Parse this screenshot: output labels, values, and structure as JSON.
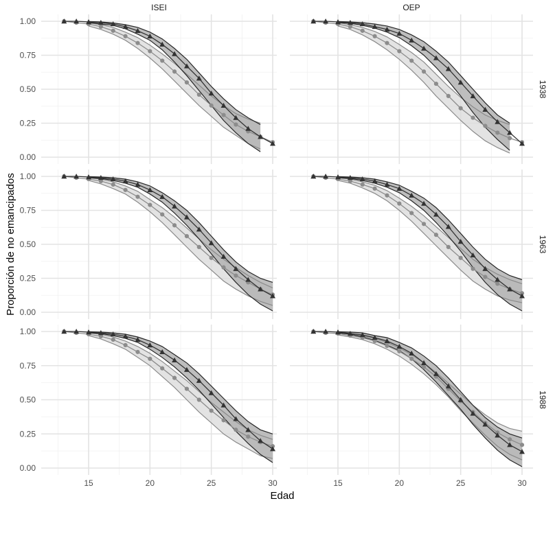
{
  "chart_data": {
    "type": "line",
    "title": "",
    "xlabel": "Edad",
    "ylabel": "Proporción de no emancipados",
    "xlim": [
      12,
      31
    ],
    "ylim": [
      -0.06,
      1.05
    ],
    "x_ticks": [
      15,
      20,
      25,
      30
    ],
    "x_tick_labels": [
      "15",
      "20",
      "25",
      "30"
    ],
    "y_ticks": [
      0,
      0.25,
      0.5,
      0.75,
      1
    ],
    "y_tick_labels": [
      "0.00",
      "0.25",
      "0.50",
      "0.75",
      "1.00"
    ],
    "grid": true,
    "col_strips": [
      "ISEI",
      "OEP"
    ],
    "row_strips": [
      "1938",
      "1963",
      "1988"
    ],
    "x": [
      13,
      14,
      15,
      16,
      17,
      18,
      19,
      20,
      21,
      22,
      23,
      24,
      25,
      26,
      27,
      28,
      29,
      30
    ],
    "panels": [
      {
        "col": "ISEI",
        "row": "1938",
        "band_end": 29,
        "series": [
          {
            "name": "triangle",
            "marker": "triangle",
            "color": "#333333",
            "values": [
              1.0,
              1.0,
              0.995,
              0.99,
              0.98,
              0.96,
              0.93,
              0.89,
              0.83,
              0.76,
              0.67,
              0.58,
              0.47,
              0.38,
              0.29,
              0.21,
              0.15,
              0.1
            ],
            "upper": [
              1.0,
              1.0,
              0.998,
              0.995,
              0.988,
              0.975,
              0.955,
              0.92,
              0.87,
              0.8,
              0.72,
              0.62,
              0.52,
              0.43,
              0.35,
              0.29,
              0.24,
              null
            ],
            "lower": [
              1.0,
              1.0,
              0.99,
              0.98,
              0.97,
              0.945,
              0.905,
              0.86,
              0.79,
              0.7,
              0.6,
              0.49,
              0.38,
              0.27,
              0.18,
              0.1,
              0.04,
              null
            ]
          },
          {
            "name": "circle",
            "marker": "circle",
            "color": "#8c8c8c",
            "values": [
              1.0,
              0.99,
              0.98,
              0.96,
              0.93,
              0.89,
              0.84,
              0.78,
              0.71,
              0.63,
              0.55,
              0.46,
              0.38,
              0.31,
              0.24,
              0.19,
              0.15,
              0.11
            ],
            "upper": [
              1.0,
              0.995,
              0.99,
              0.975,
              0.955,
              0.92,
              0.88,
              0.825,
              0.76,
              0.69,
              0.61,
              0.53,
              0.45,
              0.38,
              0.32,
              0.28,
              0.25,
              null
            ],
            "lower": [
              1.0,
              0.985,
              0.965,
              0.94,
              0.905,
              0.86,
              0.8,
              0.73,
              0.65,
              0.56,
              0.47,
              0.38,
              0.3,
              0.22,
              0.16,
              0.1,
              0.06,
              null
            ]
          }
        ]
      },
      {
        "col": "OEP",
        "row": "1938",
        "band_end": 29,
        "series": [
          {
            "name": "triangle",
            "marker": "triangle",
            "color": "#333333",
            "values": [
              1.0,
              1.0,
              0.995,
              0.99,
              0.98,
              0.96,
              0.94,
              0.91,
              0.86,
              0.8,
              0.73,
              0.65,
              0.55,
              0.45,
              0.35,
              0.26,
              0.18,
              0.1
            ],
            "upper": [
              1.0,
              1.0,
              0.998,
              0.995,
              0.99,
              0.98,
              0.965,
              0.94,
              0.9,
              0.85,
              0.78,
              0.7,
              0.6,
              0.5,
              0.4,
              0.31,
              0.25,
              null
            ],
            "lower": [
              1.0,
              1.0,
              0.99,
              0.985,
              0.97,
              0.95,
              0.92,
              0.88,
              0.82,
              0.75,
              0.66,
              0.56,
              0.45,
              0.33,
              0.22,
              0.13,
              0.05,
              null
            ]
          },
          {
            "name": "circle",
            "marker": "circle",
            "color": "#8c8c8c",
            "values": [
              1.0,
              0.99,
              0.98,
              0.96,
              0.93,
              0.89,
              0.84,
              0.78,
              0.71,
              0.63,
              0.54,
              0.45,
              0.36,
              0.29,
              0.23,
              0.18,
              0.14,
              0.11
            ],
            "upper": [
              1.0,
              0.995,
              0.99,
              0.975,
              0.955,
              0.925,
              0.885,
              0.83,
              0.77,
              0.7,
              0.61,
              0.52,
              0.44,
              0.37,
              0.31,
              0.27,
              0.24,
              null
            ],
            "lower": [
              1.0,
              0.985,
              0.965,
              0.94,
              0.9,
              0.85,
              0.79,
              0.72,
              0.64,
              0.55,
              0.45,
              0.36,
              0.27,
              0.19,
              0.12,
              0.07,
              0.03,
              null
            ]
          }
        ]
      },
      {
        "col": "ISEI",
        "row": "1963",
        "band_end": 30,
        "series": [
          {
            "name": "triangle",
            "marker": "triangle",
            "color": "#333333",
            "values": [
              1.0,
              1.0,
              0.995,
              0.99,
              0.98,
              0.965,
              0.94,
              0.9,
              0.85,
              0.78,
              0.7,
              0.61,
              0.51,
              0.41,
              0.32,
              0.24,
              0.17,
              0.12
            ],
            "upper": [
              1.0,
              1.0,
              0.998,
              0.995,
              0.99,
              0.98,
              0.96,
              0.93,
              0.88,
              0.82,
              0.75,
              0.66,
              0.56,
              0.46,
              0.37,
              0.3,
              0.25,
              0.22
            ],
            "lower": [
              1.0,
              1.0,
              0.99,
              0.985,
              0.97,
              0.95,
              0.92,
              0.87,
              0.81,
              0.73,
              0.64,
              0.54,
              0.43,
              0.32,
              0.22,
              0.13,
              0.06,
              0.01
            ]
          },
          {
            "name": "circle",
            "marker": "circle",
            "color": "#8c8c8c",
            "values": [
              1.0,
              0.99,
              0.98,
              0.965,
              0.94,
              0.9,
              0.85,
              0.79,
              0.72,
              0.64,
              0.56,
              0.48,
              0.4,
              0.33,
              0.27,
              0.22,
              0.17,
              0.13
            ],
            "upper": [
              1.0,
              0.995,
              0.99,
              0.98,
              0.96,
              0.93,
              0.89,
              0.83,
              0.77,
              0.7,
              0.62,
              0.54,
              0.46,
              0.39,
              0.33,
              0.27,
              0.22,
              0.18
            ],
            "lower": [
              1.0,
              0.985,
              0.97,
              0.945,
              0.91,
              0.87,
              0.81,
              0.74,
              0.66,
              0.57,
              0.48,
              0.39,
              0.31,
              0.23,
              0.17,
              0.12,
              0.08,
              0.05
            ]
          }
        ]
      },
      {
        "col": "OEP",
        "row": "1963",
        "band_end": 30,
        "series": [
          {
            "name": "triangle",
            "marker": "triangle",
            "color": "#333333",
            "values": [
              1.0,
              1.0,
              0.995,
              0.99,
              0.98,
              0.965,
              0.94,
              0.91,
              0.86,
              0.8,
              0.72,
              0.63,
              0.52,
              0.42,
              0.32,
              0.24,
              0.17,
              0.12
            ],
            "upper": [
              1.0,
              1.0,
              0.998,
              0.995,
              0.99,
              0.98,
              0.96,
              0.935,
              0.89,
              0.84,
              0.77,
              0.68,
              0.58,
              0.48,
              0.39,
              0.32,
              0.27,
              0.24
            ],
            "lower": [
              1.0,
              1.0,
              0.99,
              0.985,
              0.97,
              0.95,
              0.92,
              0.88,
              0.82,
              0.75,
              0.66,
              0.56,
              0.45,
              0.33,
              0.22,
              0.13,
              0.06,
              0.01
            ]
          },
          {
            "name": "circle",
            "marker": "circle",
            "color": "#8c8c8c",
            "values": [
              1.0,
              0.99,
              0.98,
              0.965,
              0.94,
              0.91,
              0.86,
              0.8,
              0.73,
              0.65,
              0.57,
              0.48,
              0.4,
              0.32,
              0.26,
              0.21,
              0.17,
              0.14
            ],
            "upper": [
              1.0,
              0.995,
              0.99,
              0.98,
              0.96,
              0.935,
              0.895,
              0.84,
              0.78,
              0.71,
              0.63,
              0.55,
              0.47,
              0.39,
              0.33,
              0.28,
              0.24,
              0.21
            ],
            "lower": [
              1.0,
              0.985,
              0.97,
              0.95,
              0.915,
              0.875,
              0.82,
              0.75,
              0.67,
              0.58,
              0.49,
              0.4,
              0.31,
              0.23,
              0.17,
              0.12,
              0.09,
              0.07
            ]
          }
        ]
      },
      {
        "col": "ISEI",
        "row": "1988",
        "band_end": 30,
        "series": [
          {
            "name": "triangle",
            "marker": "triangle",
            "color": "#333333",
            "values": [
              1.0,
              1.0,
              0.995,
              0.99,
              0.98,
              0.965,
              0.94,
              0.9,
              0.85,
              0.79,
              0.72,
              0.64,
              0.55,
              0.46,
              0.36,
              0.28,
              0.2,
              0.14
            ],
            "upper": [
              1.0,
              1.0,
              0.998,
              0.995,
              0.99,
              0.98,
              0.96,
              0.93,
              0.89,
              0.83,
              0.77,
              0.69,
              0.6,
              0.51,
              0.42,
              0.34,
              0.28,
              0.25
            ],
            "lower": [
              1.0,
              1.0,
              0.99,
              0.985,
              0.97,
              0.95,
              0.92,
              0.87,
              0.81,
              0.74,
              0.66,
              0.57,
              0.47,
              0.37,
              0.27,
              0.18,
              0.1,
              0.04
            ]
          },
          {
            "name": "circle",
            "marker": "circle",
            "color": "#8c8c8c",
            "values": [
              1.0,
              0.99,
              0.98,
              0.965,
              0.94,
              0.9,
              0.85,
              0.8,
              0.73,
              0.66,
              0.58,
              0.5,
              0.42,
              0.35,
              0.28,
              0.23,
              0.19,
              0.16
            ],
            "upper": [
              1.0,
              0.995,
              0.99,
              0.98,
              0.96,
              0.93,
              0.89,
              0.84,
              0.78,
              0.71,
              0.64,
              0.56,
              0.48,
              0.41,
              0.34,
              0.28,
              0.24,
              0.21
            ],
            "lower": [
              1.0,
              0.985,
              0.97,
              0.945,
              0.91,
              0.87,
              0.81,
              0.75,
              0.67,
              0.59,
              0.5,
              0.41,
              0.33,
              0.25,
              0.19,
              0.14,
              0.09,
              0.07
            ]
          }
        ]
      },
      {
        "col": "OEP",
        "row": "1988",
        "band_end": 30,
        "series": [
          {
            "name": "triangle",
            "marker": "triangle",
            "color": "#333333",
            "values": [
              1.0,
              1.0,
              0.995,
              0.985,
              0.975,
              0.955,
              0.93,
              0.89,
              0.84,
              0.77,
              0.69,
              0.6,
              0.5,
              0.4,
              0.32,
              0.24,
              0.17,
              0.12
            ],
            "upper": [
              1.0,
              1.0,
              0.998,
              0.995,
              0.99,
              0.97,
              0.955,
              0.92,
              0.88,
              0.82,
              0.75,
              0.66,
              0.56,
              0.46,
              0.37,
              0.3,
              0.25,
              0.22
            ],
            "lower": [
              1.0,
              1.0,
              0.99,
              0.98,
              0.96,
              0.935,
              0.9,
              0.86,
              0.8,
              0.72,
              0.63,
              0.53,
              0.43,
              0.32,
              0.22,
              0.13,
              0.06,
              0.01
            ]
          },
          {
            "name": "circle",
            "marker": "circle",
            "color": "#8c8c8c",
            "values": [
              1.0,
              0.99,
              0.985,
              0.97,
              0.955,
              0.93,
              0.895,
              0.855,
              0.8,
              0.74,
              0.67,
              0.58,
              0.49,
              0.41,
              0.33,
              0.26,
              0.21,
              0.17
            ],
            "upper": [
              1.0,
              0.995,
              0.99,
              0.98,
              0.97,
              0.95,
              0.92,
              0.88,
              0.83,
              0.77,
              0.7,
              0.62,
              0.54,
              0.46,
              0.39,
              0.33,
              0.29,
              0.27
            ],
            "lower": [
              1.0,
              0.985,
              0.975,
              0.96,
              0.94,
              0.91,
              0.87,
              0.82,
              0.76,
              0.69,
              0.61,
              0.52,
              0.42,
              0.33,
              0.24,
              0.16,
              0.1,
              0.06
            ]
          }
        ]
      }
    ]
  }
}
